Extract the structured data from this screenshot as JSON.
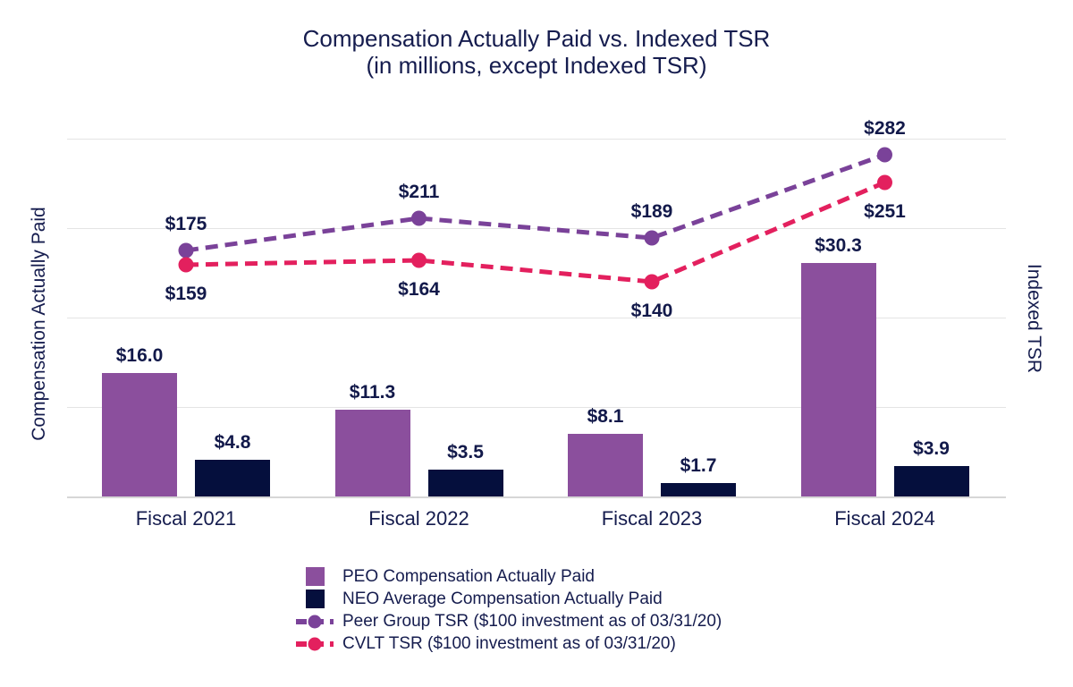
{
  "title": {
    "line1": "Compensation Actually Paid vs. Indexed TSR",
    "line2": "(in millions, except Indexed TSR)"
  },
  "colors": {
    "peo_bar": "#8B4F9D",
    "neo_bar": "#050F3D",
    "peer_line": "#7A4299",
    "cvlt_line": "#E3205E",
    "text": "#151C4E",
    "gridline": "#E4E4E4"
  },
  "legend": [
    {
      "marker": "square",
      "color": "#8B4F9D",
      "label": "PEO Compensation Actually Paid"
    },
    {
      "marker": "square",
      "color": "#050F3D",
      "label": "NEO Average Compensation Actually Paid"
    },
    {
      "marker": "line",
      "color": "#7A4299",
      "label": "Peer Group TSR ($100 investment as of 03/31/20)"
    },
    {
      "marker": "line",
      "color": "#E3205E",
      "label": "CVLT TSR ($100 investment as of 03/31/20)"
    }
  ],
  "chart_data": {
    "type": "bar+line combo",
    "title": "Compensation Actually Paid vs. Indexed TSR (in millions, except Indexed TSR)",
    "categories": [
      "Fiscal 2021",
      "Fiscal 2022",
      "Fiscal 2023",
      "Fiscal 2024"
    ],
    "bar_series": [
      {
        "name": "PEO Compensation Actually Paid",
        "color": "#8B4F9D",
        "values": [
          16.0,
          11.3,
          8.1,
          30.3
        ],
        "labels": [
          "$16.0",
          "$11.3",
          "$8.1",
          "$30.3"
        ]
      },
      {
        "name": "NEO Average Compensation Actually Paid",
        "color": "#050F3D",
        "values": [
          4.8,
          3.5,
          1.7,
          3.9
        ],
        "labels": [
          "$4.8",
          "$3.5",
          "$1.7",
          "$3.9"
        ]
      }
    ],
    "line_series": [
      {
        "name": "Peer Group TSR ($100 investment as of 03/31/20)",
        "color": "#7A4299",
        "style": "dashed",
        "values": [
          175,
          211,
          189,
          282
        ],
        "labels": [
          "$175",
          "$211",
          "$189",
          "$282"
        ],
        "label_position": "above"
      },
      {
        "name": "CVLT TSR ($100 investment as of 03/31/20)",
        "color": "#E3205E",
        "style": "dashed",
        "values": [
          159,
          164,
          140,
          251
        ],
        "labels": [
          "$159",
          "$164",
          "$140",
          "$251"
        ],
        "label_position": "below"
      }
    ],
    "left_axis": {
      "label": "Compensation Actually Paid",
      "min": 0,
      "units": "millions"
    },
    "right_axis": {
      "label": "Indexed TSR",
      "min": 0,
      "gridline_values": [
        0,
        100,
        200,
        300
      ]
    },
    "grid": true,
    "legend_position": "bottom"
  }
}
